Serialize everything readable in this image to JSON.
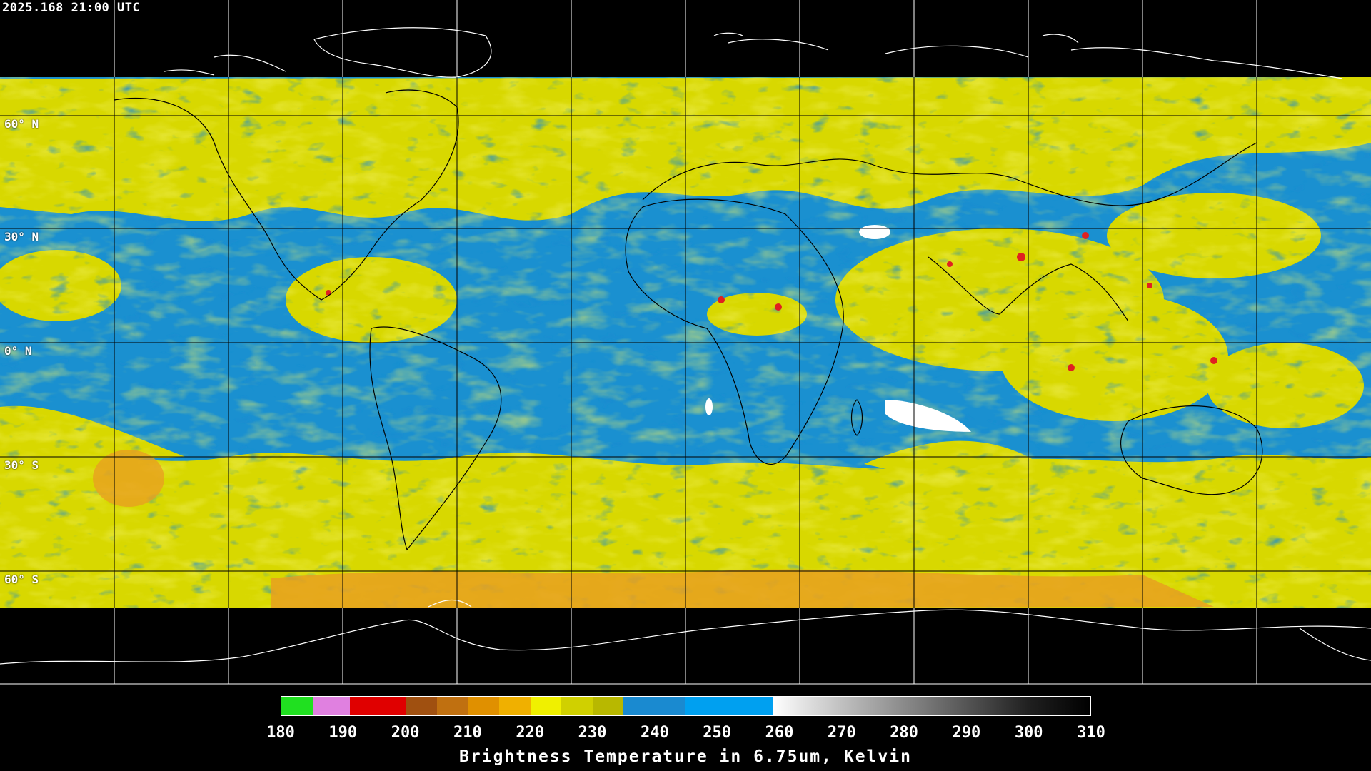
{
  "timestamp": "2025.168 21:00 UTC",
  "lat_labels": [
    "60° N",
    "30° N",
    "0° N",
    "30° S",
    "60° S"
  ],
  "colors": {
    "background": "#000000",
    "moist_blue": "#1a90d0",
    "dry_yellow": "#d8d800",
    "orange": "#e8a020",
    "red": "#e02020",
    "grid": "#000000",
    "coast_land": "#000000",
    "coast_polar": "#ffffff"
  },
  "colorbar": {
    "ticks": [
      "180",
      "190",
      "200",
      "210",
      "220",
      "230",
      "240",
      "250",
      "260",
      "270",
      "280",
      "290",
      "300",
      "310"
    ],
    "title": "Brightness Temperature in 6.75um, Kelvin",
    "min": 180,
    "max": 310,
    "segments": [
      {
        "from": 180,
        "to": 185,
        "color": "#20e020"
      },
      {
        "from": 185,
        "to": 191,
        "color": "#e080e0"
      },
      {
        "from": 191,
        "to": 200,
        "color": "#e00000"
      },
      {
        "from": 200,
        "to": 205,
        "color": "#a05010"
      },
      {
        "from": 205,
        "to": 210,
        "color": "#c07010"
      },
      {
        "from": 210,
        "to": 215,
        "color": "#e09000"
      },
      {
        "from": 215,
        "to": 220,
        "color": "#f0b000"
      },
      {
        "from": 220,
        "to": 225,
        "color": "#f0f000"
      },
      {
        "from": 225,
        "to": 230,
        "color": "#d0d000"
      },
      {
        "from": 230,
        "to": 235,
        "color": "#b8b800"
      },
      {
        "from": 235,
        "to": 245,
        "color": "#1a8ad0"
      },
      {
        "from": 245,
        "to": 259,
        "color": "#00a0f0"
      },
      {
        "from": 259,
        "to": 270,
        "gradient": [
          "#ffffff",
          "#c0c0c0"
        ]
      },
      {
        "from": 270,
        "to": 285,
        "gradient": [
          "#c0c0c0",
          "#707070"
        ]
      },
      {
        "from": 285,
        "to": 300,
        "gradient": [
          "#707070",
          "#202020"
        ]
      },
      {
        "from": 300,
        "to": 310,
        "gradient": [
          "#202020",
          "#000000"
        ]
      }
    ]
  }
}
